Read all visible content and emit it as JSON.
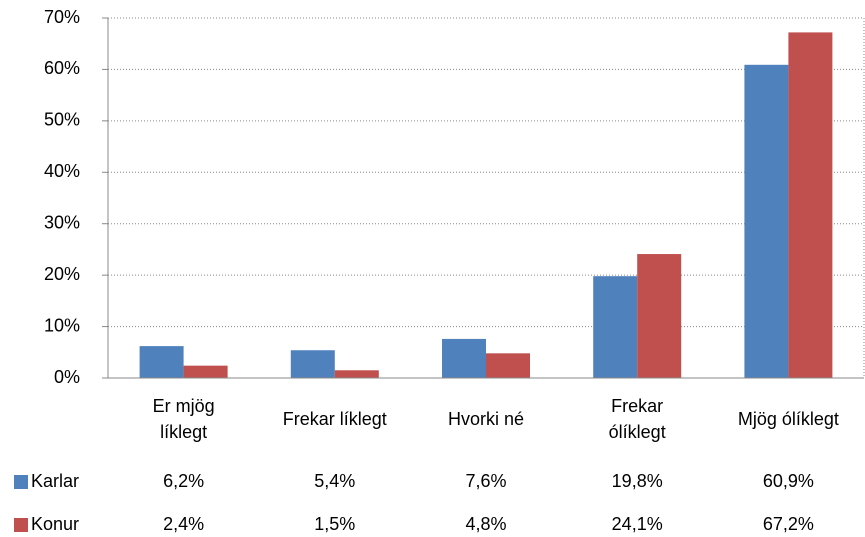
{
  "chart_data": {
    "type": "bar",
    "categories": [
      "Er mjög líklegt",
      "Frekar líklegt",
      "Hvorki né",
      "Frekar ólíklegt",
      "Mjög ólíklegt"
    ],
    "series": [
      {
        "name": "Karlar",
        "color": "#4f81bd",
        "values": [
          6.2,
          5.4,
          7.6,
          19.8,
          60.9
        ],
        "value_labels": [
          "6,2%",
          "5,4%",
          "7,6%",
          "19,8%",
          "60,9%"
        ]
      },
      {
        "name": "Konur",
        "color": "#c0504d",
        "values": [
          2.4,
          1.5,
          4.8,
          24.1,
          67.2
        ],
        "value_labels": [
          "2,4%",
          "1,5%",
          "4,8%",
          "24,1%",
          "67,2%"
        ]
      }
    ],
    "ylim": [
      0,
      70
    ],
    "yticks": [
      {
        "value": 0,
        "label": "0%"
      },
      {
        "value": 10,
        "label": "10%"
      },
      {
        "value": 20,
        "label": "20%"
      },
      {
        "value": 30,
        "label": "30%"
      },
      {
        "value": 40,
        "label": "40%"
      },
      {
        "value": 50,
        "label": "50%"
      },
      {
        "value": 60,
        "label": "60%"
      },
      {
        "value": 70,
        "label": "70%"
      }
    ],
    "grid": true
  }
}
